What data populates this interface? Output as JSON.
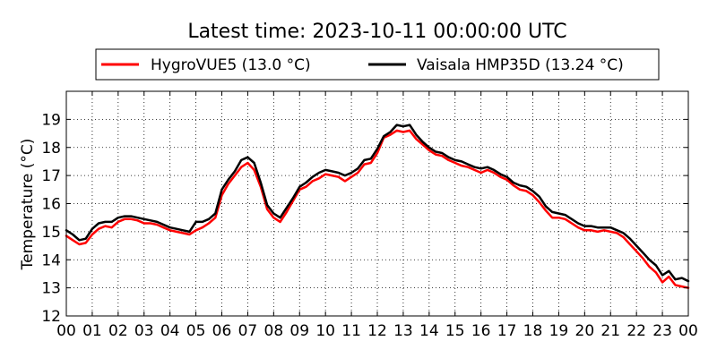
{
  "chart_data": {
    "type": "line",
    "title": "Latest time: 2023-10-11 00:00:00 UTC",
    "xlabel": "",
    "ylabel": "Temperature (°C)",
    "xlim": [
      0,
      24
    ],
    "ylim": [
      12,
      20
    ],
    "x_ticks": [
      0,
      1,
      2,
      3,
      4,
      5,
      6,
      7,
      8,
      9,
      10,
      11,
      12,
      13,
      14,
      15,
      16,
      17,
      18,
      19,
      20,
      21,
      22,
      23,
      24
    ],
    "x_tick_labels": [
      "00",
      "01",
      "02",
      "03",
      "04",
      "05",
      "06",
      "07",
      "08",
      "09",
      "10",
      "11",
      "12",
      "13",
      "14",
      "15",
      "16",
      "17",
      "18",
      "19",
      "20",
      "21",
      "22",
      "23",
      "00"
    ],
    "y_ticks": [
      12,
      13,
      14,
      15,
      16,
      17,
      18,
      19
    ],
    "y_tick_labels": [
      "12",
      "13",
      "14",
      "15",
      "16",
      "17",
      "18",
      "19"
    ],
    "grid": true,
    "legend_position": "top (above plot)",
    "x": [
      0,
      0.25,
      0.5,
      0.75,
      1,
      1.25,
      1.5,
      1.75,
      2,
      2.25,
      2.5,
      2.75,
      3,
      3.25,
      3.5,
      3.75,
      4,
      4.25,
      4.5,
      4.75,
      5,
      5.25,
      5.5,
      5.75,
      6,
      6.25,
      6.5,
      6.75,
      7,
      7.25,
      7.5,
      7.75,
      8,
      8.25,
      8.5,
      8.75,
      9,
      9.25,
      9.5,
      9.75,
      10,
      10.25,
      10.5,
      10.75,
      11,
      11.25,
      11.5,
      11.75,
      12,
      12.25,
      12.5,
      12.75,
      13,
      13.25,
      13.5,
      13.75,
      14,
      14.25,
      14.5,
      14.75,
      15,
      15.25,
      15.5,
      15.75,
      16,
      16.25,
      16.5,
      16.75,
      17,
      17.25,
      17.5,
      17.75,
      18,
      18.25,
      18.5,
      18.75,
      19,
      19.25,
      19.5,
      19.75,
      20,
      20.25,
      20.5,
      20.75,
      21,
      21.25,
      21.5,
      21.75,
      22,
      22.25,
      22.5,
      22.75,
      23,
      23.25,
      23.5,
      23.75,
      24
    ],
    "series": [
      {
        "name": "HygroVUE5 (13.0 °C)",
        "color": "#ff0000",
        "values": [
          14.85,
          14.7,
          14.55,
          14.6,
          14.9,
          15.1,
          15.2,
          15.15,
          15.35,
          15.45,
          15.45,
          15.4,
          15.3,
          15.3,
          15.25,
          15.15,
          15.05,
          15.0,
          14.95,
          14.9,
          15.05,
          15.15,
          15.3,
          15.5,
          16.3,
          16.7,
          17.0,
          17.3,
          17.45,
          17.2,
          16.6,
          15.8,
          15.5,
          15.35,
          15.7,
          16.1,
          16.5,
          16.6,
          16.8,
          16.9,
          17.05,
          17.0,
          16.95,
          16.8,
          16.95,
          17.1,
          17.4,
          17.45,
          17.8,
          18.35,
          18.45,
          18.6,
          18.55,
          18.6,
          18.3,
          18.1,
          17.9,
          17.75,
          17.7,
          17.55,
          17.45,
          17.35,
          17.3,
          17.2,
          17.1,
          17.2,
          17.1,
          16.95,
          16.85,
          16.65,
          16.5,
          16.45,
          16.3,
          16.05,
          15.75,
          15.5,
          15.5,
          15.45,
          15.3,
          15.15,
          15.05,
          15.05,
          15.0,
          15.05,
          15.0,
          14.95,
          14.8,
          14.55,
          14.3,
          14.05,
          13.75,
          13.55,
          13.2,
          13.4,
          13.1,
          13.05,
          13.0
        ]
      },
      {
        "name": "Vaisala HMP35D (13.24 °C)",
        "color": "#000000",
        "values": [
          15.05,
          14.9,
          14.7,
          14.75,
          15.1,
          15.3,
          15.35,
          15.35,
          15.5,
          15.55,
          15.55,
          15.5,
          15.45,
          15.4,
          15.35,
          15.25,
          15.15,
          15.1,
          15.05,
          15.0,
          15.35,
          15.35,
          15.45,
          15.65,
          16.5,
          16.85,
          17.15,
          17.55,
          17.65,
          17.45,
          16.75,
          15.95,
          15.65,
          15.5,
          15.85,
          16.2,
          16.6,
          16.75,
          16.95,
          17.1,
          17.2,
          17.15,
          17.1,
          17.0,
          17.1,
          17.25,
          17.55,
          17.6,
          17.95,
          18.4,
          18.55,
          18.8,
          18.75,
          18.8,
          18.45,
          18.2,
          18.0,
          17.85,
          17.8,
          17.65,
          17.55,
          17.5,
          17.4,
          17.3,
          17.25,
          17.3,
          17.2,
          17.05,
          16.95,
          16.75,
          16.65,
          16.6,
          16.45,
          16.25,
          15.9,
          15.7,
          15.65,
          15.6,
          15.45,
          15.3,
          15.2,
          15.2,
          15.15,
          15.15,
          15.15,
          15.05,
          14.95,
          14.75,
          14.5,
          14.25,
          14.0,
          13.8,
          13.45,
          13.6,
          13.3,
          13.35,
          13.24
        ]
      }
    ]
  }
}
